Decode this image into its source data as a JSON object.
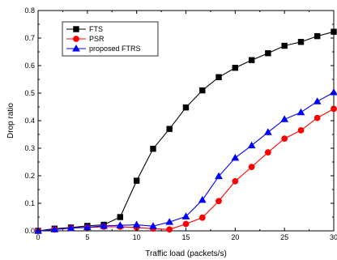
{
  "chart_data": {
    "type": "line",
    "title": "",
    "xlabel": "Traffic load (packets/s)",
    "ylabel": "Drop ratio",
    "xlim": [
      0,
      30
    ],
    "ylim": [
      0,
      0.8
    ],
    "xticks": [
      0,
      5,
      10,
      15,
      20,
      25,
      30
    ],
    "yticks": [
      0.0,
      0.1,
      0.2,
      0.3,
      0.4,
      0.5,
      0.6,
      0.7,
      0.8
    ],
    "xtick_labels": [
      "0",
      "5",
      "10",
      "15",
      "20",
      "25",
      "30"
    ],
    "ytick_labels": [
      "0.0",
      "0.1",
      "0.2",
      "0.3",
      "0.4",
      "0.5",
      "0.6",
      "0.7",
      "0.8"
    ],
    "grid": false,
    "legend_position": "top-left",
    "x": [
      0,
      1.67,
      3.33,
      5,
      6.67,
      8.33,
      10,
      11.67,
      13.33,
      15,
      16.67,
      18.33,
      20,
      21.67,
      23.33,
      25,
      26.67,
      28.33,
      30
    ],
    "series": [
      {
        "name": "FTS",
        "color": "#000000",
        "marker": "square",
        "values": [
          0.0,
          0.008,
          0.012,
          0.018,
          0.022,
          0.05,
          0.182,
          0.298,
          0.37,
          0.448,
          0.51,
          0.558,
          0.592,
          0.62,
          0.645,
          0.672,
          0.686,
          0.707,
          0.723
        ]
      },
      {
        "name": "PSR",
        "color": "#ff0000",
        "marker": "circle",
        "values": [
          0.0,
          0.005,
          0.01,
          0.012,
          0.015,
          0.015,
          0.012,
          0.008,
          0.005,
          0.025,
          0.048,
          0.108,
          0.18,
          0.232,
          0.285,
          0.335,
          0.365,
          0.41,
          0.443
        ]
      },
      {
        "name": "proposed FTRS",
        "color": "#0000ff",
        "marker": "triangle",
        "values": [
          0.0,
          0.005,
          0.01,
          0.013,
          0.018,
          0.02,
          0.022,
          0.017,
          0.032,
          0.052,
          0.112,
          0.198,
          0.265,
          0.31,
          0.358,
          0.405,
          0.43,
          0.47,
          0.503
        ]
      }
    ]
  }
}
